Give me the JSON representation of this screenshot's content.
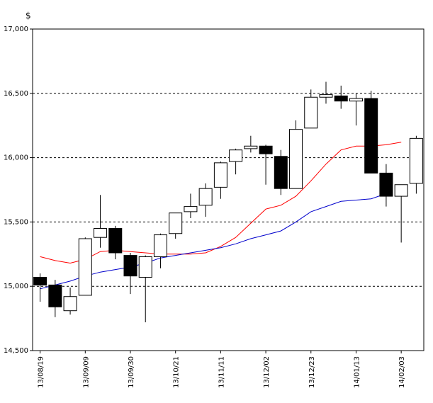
{
  "chart_data": {
    "type": "candlestick",
    "y_unit": "$",
    "ylim": [
      14500,
      17000
    ],
    "y_ticks": [
      14500,
      15000,
      15500,
      16000,
      16500,
      17000
    ],
    "y_tick_labels": [
      "14,500",
      "15,000",
      "15,500",
      "16,000",
      "16,500",
      "17,000"
    ],
    "x_tick_labels": [
      "13/08/19",
      "13/09/09",
      "13/09/30",
      "13/10/21",
      "13/11/11",
      "13/12/02",
      "13/12/23",
      "14/01/13",
      "14/02/03"
    ],
    "x_tick_indices": [
      0,
      3,
      6,
      9,
      12,
      15,
      18,
      21,
      24
    ],
    "grid": "dashed horizontal",
    "colors": {
      "up": "#ffffff",
      "down": "#000000",
      "ma_short": "#ff0000",
      "ma_long": "#0000cc"
    },
    "candles": [
      {
        "date": "13/08/19",
        "open": 15070,
        "high": 15100,
        "low": 14880,
        "close": 15010
      },
      {
        "date": "13/08/26",
        "open": 15010,
        "high": 15050,
        "low": 14760,
        "close": 14840
      },
      {
        "date": "13/09/02",
        "open": 14810,
        "high": 14990,
        "low": 14780,
        "close": 14920
      },
      {
        "date": "13/09/09",
        "open": 14930,
        "high": 15380,
        "low": 14930,
        "close": 15370
      },
      {
        "date": "13/09/16",
        "open": 15380,
        "high": 15710,
        "low": 15300,
        "close": 15450
      },
      {
        "date": "13/09/23",
        "open": 15450,
        "high": 15470,
        "low": 15210,
        "close": 15260
      },
      {
        "date": "13/09/30",
        "open": 15240,
        "high": 15260,
        "low": 14940,
        "close": 15080
      },
      {
        "date": "13/10/07",
        "open": 15070,
        "high": 15240,
        "low": 14720,
        "close": 15230
      },
      {
        "date": "13/10/14",
        "open": 15230,
        "high": 15410,
        "low": 15140,
        "close": 15400
      },
      {
        "date": "13/10/21",
        "open": 15410,
        "high": 15570,
        "low": 15370,
        "close": 15570
      },
      {
        "date": "13/10/28",
        "open": 15580,
        "high": 15720,
        "low": 15530,
        "close": 15620
      },
      {
        "date": "13/11/04",
        "open": 15630,
        "high": 15800,
        "low": 15540,
        "close": 15760
      },
      {
        "date": "13/11/11",
        "open": 15770,
        "high": 15970,
        "low": 15680,
        "close": 15960
      },
      {
        "date": "13/11/18",
        "open": 15970,
        "high": 16070,
        "low": 15870,
        "close": 16060
      },
      {
        "date": "13/11/25",
        "open": 16070,
        "high": 16170,
        "low": 16040,
        "close": 16090
      },
      {
        "date": "13/12/02",
        "open": 16090,
        "high": 16100,
        "low": 15790,
        "close": 16030
      },
      {
        "date": "13/12/09",
        "open": 16010,
        "high": 16060,
        "low": 15710,
        "close": 15760
      },
      {
        "date": "13/12/16",
        "open": 15760,
        "high": 16290,
        "low": 15760,
        "close": 16220
      },
      {
        "date": "13/12/23",
        "open": 16230,
        "high": 16530,
        "low": 16230,
        "close": 16470
      },
      {
        "date": "13/12/30",
        "open": 16470,
        "high": 16590,
        "low": 16420,
        "close": 16490
      },
      {
        "date": "14/01/06",
        "open": 16480,
        "high": 16560,
        "low": 16380,
        "close": 16440
      },
      {
        "date": "14/01/13",
        "open": 16440,
        "high": 16500,
        "low": 16250,
        "close": 16460
      },
      {
        "date": "14/01/20",
        "open": 16460,
        "high": 16520,
        "low": 15880,
        "close": 15880
      },
      {
        "date": "14/01/27",
        "open": 15880,
        "high": 15950,
        "low": 15620,
        "close": 15700
      },
      {
        "date": "14/02/03",
        "open": 15700,
        "high": 15790,
        "low": 15340,
        "close": 15790
      },
      {
        "date": "14/02/10",
        "open": 15800,
        "high": 16170,
        "low": 15720,
        "close": 16150
      }
    ],
    "series": [
      {
        "color": "red",
        "values": [
          15230,
          15200,
          15180,
          15210,
          15270,
          15280,
          15270,
          15260,
          15250,
          15250,
          15250,
          15260,
          15310,
          15380,
          15490,
          15600,
          15630,
          15700,
          15820,
          15950,
          16060,
          16090,
          16090,
          16100,
          16120
        ]
      },
      {
        "color": "blue",
        "values": [
          14980,
          15010,
          15040,
          15080,
          15110,
          15130,
          15150,
          15180,
          15220,
          15240,
          15260,
          15280,
          15300,
          15330,
          15370,
          15400,
          15430,
          15500,
          15580,
          15620,
          15660,
          15670,
          15680,
          15720
        ]
      }
    ]
  }
}
